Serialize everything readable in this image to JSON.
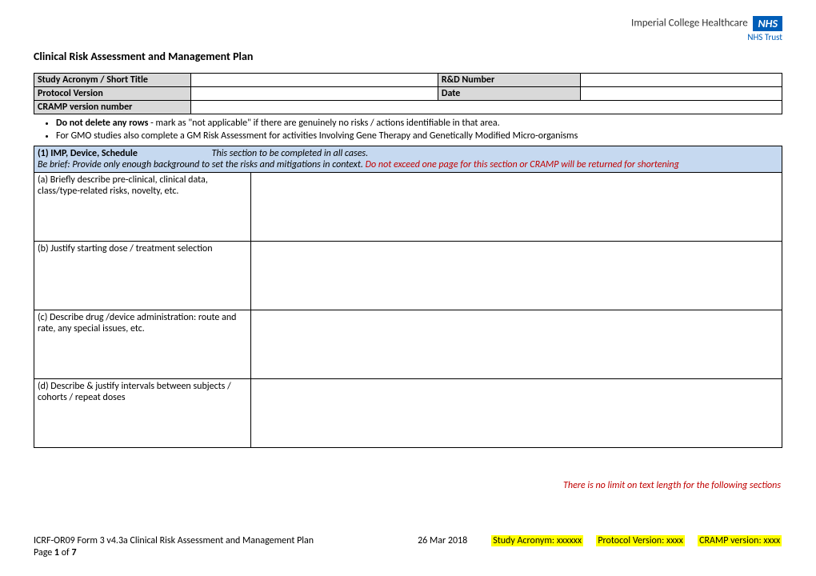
{
  "header": {
    "org": "Imperial College Healthcare",
    "nhs": "NHS",
    "trust": "NHS Trust"
  },
  "title": "Clinical Risk Assessment and Management Plan",
  "meta": {
    "row1_label1": "Study Acronym / Short Title",
    "row1_val1": "",
    "row1_label2": "R&D Number",
    "row1_val2": "",
    "row2_label1": "Protocol Version",
    "row2_val1": "",
    "row2_label2": "Date",
    "row2_val2": "",
    "row3_label1": "CRAMP version number",
    "row3_val1": ""
  },
  "notes": {
    "b1_bold": "Do not delete any rows",
    "b1_rest": " - mark as \"not applicable\" if there are genuinely no risks / actions identifiable in that area.",
    "b2": "For GMO studies also complete a GM Risk Assessment for activities Involving Gene Therapy and Genetically Modified Micro-organisms"
  },
  "section1": {
    "head_bold": "(1) IMP, Device, Schedule",
    "head_em": "This section to be completed in all cases.",
    "sub_plain": "Be brief: Provide only enough background to set the risks and mitigations in context. ",
    "sub_red": "Do not exceed one page for this section or CRAMP will be returned for shortening",
    "a": "(a) Briefly describe pre-clinical, clinical data, class/type-related risks, novelty, etc.",
    "b": "(b) Justify starting dose / treatment selection",
    "c": "(c) Describe drug /device administration: route and rate, any special issues, etc.",
    "d": "(d) Describe & justify intervals between subjects / cohorts / repeat doses"
  },
  "bottom_note": "There is no limit on text length for the following sections",
  "footer": {
    "form": "ICRF-OR09 Form 3 v4.3a Clinical Risk Assessment and Management Plan",
    "date": "26 Mar 2018",
    "acr": "Study Acronym: xxxxxx",
    "pv": "Protocol  Version: xxxx",
    "cv": "CRAMP version: xxxx",
    "page_a": "Page ",
    "page_n": "1",
    "page_b": " of ",
    "page_t": "7"
  }
}
